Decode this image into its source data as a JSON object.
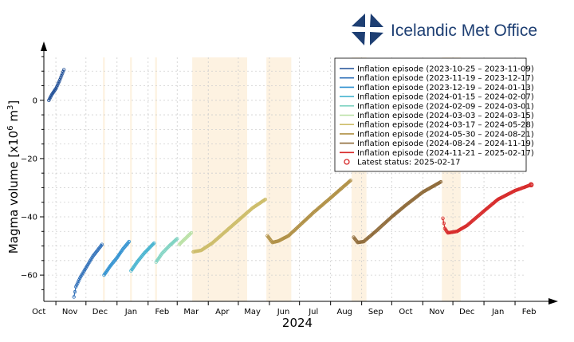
{
  "logo": {
    "text": "Icelandic Met Office",
    "color": "#1e3f73"
  },
  "chart_data": {
    "type": "line",
    "title": "",
    "xlabel": "2024",
    "ylabel_main": "Magma volume [x10",
    "ylabel_exp": "6",
    "ylabel_unit": " m",
    "ylabel_unit_exp": "3",
    "ylabel_close": "]",
    "ylim": [
      -69,
      18
    ],
    "y_ticks": [
      0,
      -20,
      -40,
      -60
    ],
    "y_tick_labels": [
      "0",
      "−20",
      "−40",
      "−60"
    ],
    "x_ticks": [
      {
        "label": "Oct",
        "date": "2023-10-15"
      },
      {
        "label": "Nov",
        "date": "2023-11-15"
      },
      {
        "label": "Dec",
        "date": "2023-12-15"
      },
      {
        "label": "Jan",
        "date": "2024-01-15"
      },
      {
        "label": "Feb",
        "date": "2024-02-15"
      },
      {
        "label": "Mar",
        "date": "2024-03-15"
      },
      {
        "label": "Apr",
        "date": "2024-04-15"
      },
      {
        "label": "May",
        "date": "2024-05-15"
      },
      {
        "label": "Jun",
        "date": "2024-06-15"
      },
      {
        "label": "Jul",
        "date": "2024-07-15"
      },
      {
        "label": "Aug",
        "date": "2024-08-15"
      },
      {
        "label": "Sep",
        "date": "2024-09-15"
      },
      {
        "label": "Oct",
        "date": "2024-10-15"
      },
      {
        "label": "Nov",
        "date": "2024-11-15"
      },
      {
        "label": "Dec",
        "date": "2024-12-15"
      },
      {
        "label": "Jan",
        "date": "2025-01-15"
      },
      {
        "label": "Feb",
        "date": "2025-02-15"
      }
    ],
    "month_boundaries": [
      "2023-11-01",
      "2023-12-01",
      "2024-01-01",
      "2024-02-01",
      "2024-03-01",
      "2024-04-01",
      "2024-05-01",
      "2024-06-01",
      "2024-07-01",
      "2024-08-01",
      "2024-09-01",
      "2024-10-01",
      "2024-11-01",
      "2024-12-01",
      "2025-01-01",
      "2025-02-01"
    ],
    "x_range": [
      "2023-10-20",
      "2025-02-28"
    ],
    "eruption_periods": [
      {
        "start": "2023-12-18",
        "end": "2023-12-19"
      },
      {
        "start": "2024-01-14",
        "end": "2024-01-15"
      },
      {
        "start": "2024-02-08",
        "end": "2024-02-09"
      },
      {
        "start": "2024-03-16",
        "end": "2024-05-09"
      },
      {
        "start": "2024-05-29",
        "end": "2024-06-22"
      },
      {
        "start": "2024-08-22",
        "end": "2024-09-05"
      },
      {
        "start": "2024-11-20",
        "end": "2024-12-08"
      }
    ],
    "series": [
      {
        "name": "Inflation episode (2023-10-25 – 2023-11-09)",
        "color": "#1f4e96",
        "points": [
          [
            "2023-10-25",
            0
          ],
          [
            "2023-10-28",
            2
          ],
          [
            "2023-11-01",
            4
          ],
          [
            "2023-11-05",
            7
          ],
          [
            "2023-11-09",
            10.5
          ]
        ]
      },
      {
        "name": "Inflation episode (2023-11-19 – 2023-12-17)",
        "color": "#2f6fb8",
        "points": [
          [
            "2023-11-19",
            -67.5
          ],
          [
            "2023-11-21",
            -64
          ],
          [
            "2023-11-25",
            -61
          ],
          [
            "2023-12-01",
            -57.5
          ],
          [
            "2023-12-08",
            -53.5
          ],
          [
            "2023-12-17",
            -49.5
          ]
        ]
      },
      {
        "name": "Inflation episode (2023-12-19 – 2024-01-13)",
        "color": "#2e90d0",
        "points": [
          [
            "2023-12-19",
            -60
          ],
          [
            "2023-12-25",
            -57
          ],
          [
            "2024-01-01",
            -54
          ],
          [
            "2024-01-07",
            -51
          ],
          [
            "2024-01-13",
            -48.5
          ]
        ]
      },
      {
        "name": "Inflation episode (2024-01-15 – 2024-02-07)",
        "color": "#45b3cf",
        "points": [
          [
            "2024-01-15",
            -58.5
          ],
          [
            "2024-01-21",
            -55.5
          ],
          [
            "2024-01-28",
            -52.5
          ],
          [
            "2024-02-07",
            -49
          ]
        ]
      },
      {
        "name": "Inflation episode (2024-02-09 – 2024-03-01)",
        "color": "#7fd3c2",
        "points": [
          [
            "2024-02-09",
            -55.5
          ],
          [
            "2024-02-15",
            -52.5
          ],
          [
            "2024-02-22",
            -50
          ],
          [
            "2024-03-01",
            -47.5
          ]
        ]
      },
      {
        "name": "Inflation episode (2024-03-03 – 2024-03-15)",
        "color": "#b8e0a3",
        "points": [
          [
            "2024-03-03",
            -49.5
          ],
          [
            "2024-03-09",
            -47.5
          ],
          [
            "2024-03-15",
            -45.5
          ]
        ]
      },
      {
        "name": "Inflation episode (2024-03-17 – 2024-05-28)",
        "color": "#cdbd6a",
        "points": [
          [
            "2024-03-17",
            -52
          ],
          [
            "2024-03-25",
            -51.5
          ],
          [
            "2024-04-05",
            -49
          ],
          [
            "2024-04-15",
            -46
          ],
          [
            "2024-04-25",
            -43
          ],
          [
            "2024-05-05",
            -40
          ],
          [
            "2024-05-15",
            -37
          ],
          [
            "2024-05-28",
            -34
          ]
        ]
      },
      {
        "name": "Inflation episode (2024-05-30 – 2024-08-21)",
        "color": "#b09045",
        "points": [
          [
            "2024-05-30",
            -46.5
          ],
          [
            "2024-06-04",
            -48.8
          ],
          [
            "2024-06-10",
            -48.3
          ],
          [
            "2024-06-20",
            -46.5
          ],
          [
            "2024-07-01",
            -43
          ],
          [
            "2024-07-15",
            -38.5
          ],
          [
            "2024-08-01",
            -33.5
          ],
          [
            "2024-08-21",
            -27.5
          ]
        ]
      },
      {
        "name": "Inflation episode (2024-08-24 – 2024-11-19)",
        "color": "#8f6b3a",
        "points": [
          [
            "2024-08-24",
            -47
          ],
          [
            "2024-08-28",
            -48.8
          ],
          [
            "2024-09-03",
            -48.5
          ],
          [
            "2024-09-15",
            -45
          ],
          [
            "2024-10-01",
            -40
          ],
          [
            "2024-10-15",
            -36
          ],
          [
            "2024-11-01",
            -31.5
          ],
          [
            "2024-11-19",
            -28
          ]
        ]
      },
      {
        "name": "Inflation episode (2024-11-21 – 2025-02-17)",
        "color": "#d72a2a",
        "points": [
          [
            "2024-11-21",
            -40.5
          ],
          [
            "2024-11-23",
            -44
          ],
          [
            "2024-11-26",
            -45.5
          ],
          [
            "2024-12-05",
            -45
          ],
          [
            "2024-12-15",
            -43
          ],
          [
            "2025-01-01",
            -38
          ],
          [
            "2025-01-15",
            -34
          ],
          [
            "2025-02-01",
            -31
          ],
          [
            "2025-02-17",
            -29
          ]
        ]
      }
    ],
    "latest_status": {
      "label": "Latest status: 2025-02-17",
      "date": "2025-02-17",
      "value": -29,
      "color": "#d72a2a"
    },
    "legend_position": "top-right"
  }
}
